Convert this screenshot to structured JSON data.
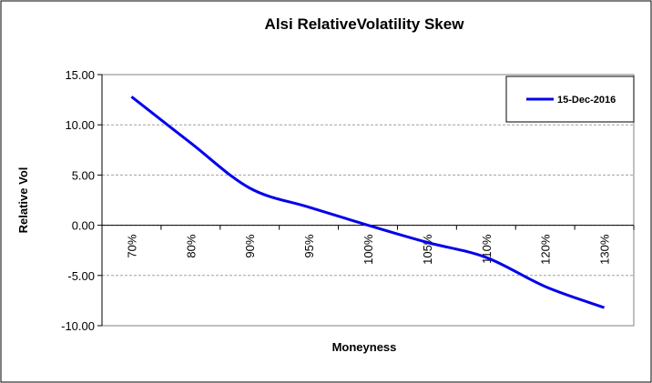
{
  "chart_data": {
    "type": "line",
    "title": "Alsi RelativeVolatility Skew",
    "xlabel": "Moneyness",
    "ylabel": "Relative Vol",
    "categories": [
      "70%",
      "80%",
      "90%",
      "95%",
      "100%",
      "105%",
      "110%",
      "120%",
      "130%"
    ],
    "series": [
      {
        "name": "15-Dec-2016",
        "color": "#0000ee",
        "values": [
          12.8,
          8.2,
          3.7,
          1.8,
          0.0,
          -1.7,
          -3.2,
          -6.1,
          -8.2
        ]
      }
    ],
    "ylim": [
      -10,
      15
    ],
    "yticks": [
      "15.00",
      "10.00",
      "5.00",
      "0.00",
      "-5.00",
      "-10.00"
    ],
    "ytick_values": [
      15,
      10,
      5,
      0,
      -5,
      -10
    ],
    "grid": "horizontal dashed",
    "legend_position": "top-right"
  }
}
